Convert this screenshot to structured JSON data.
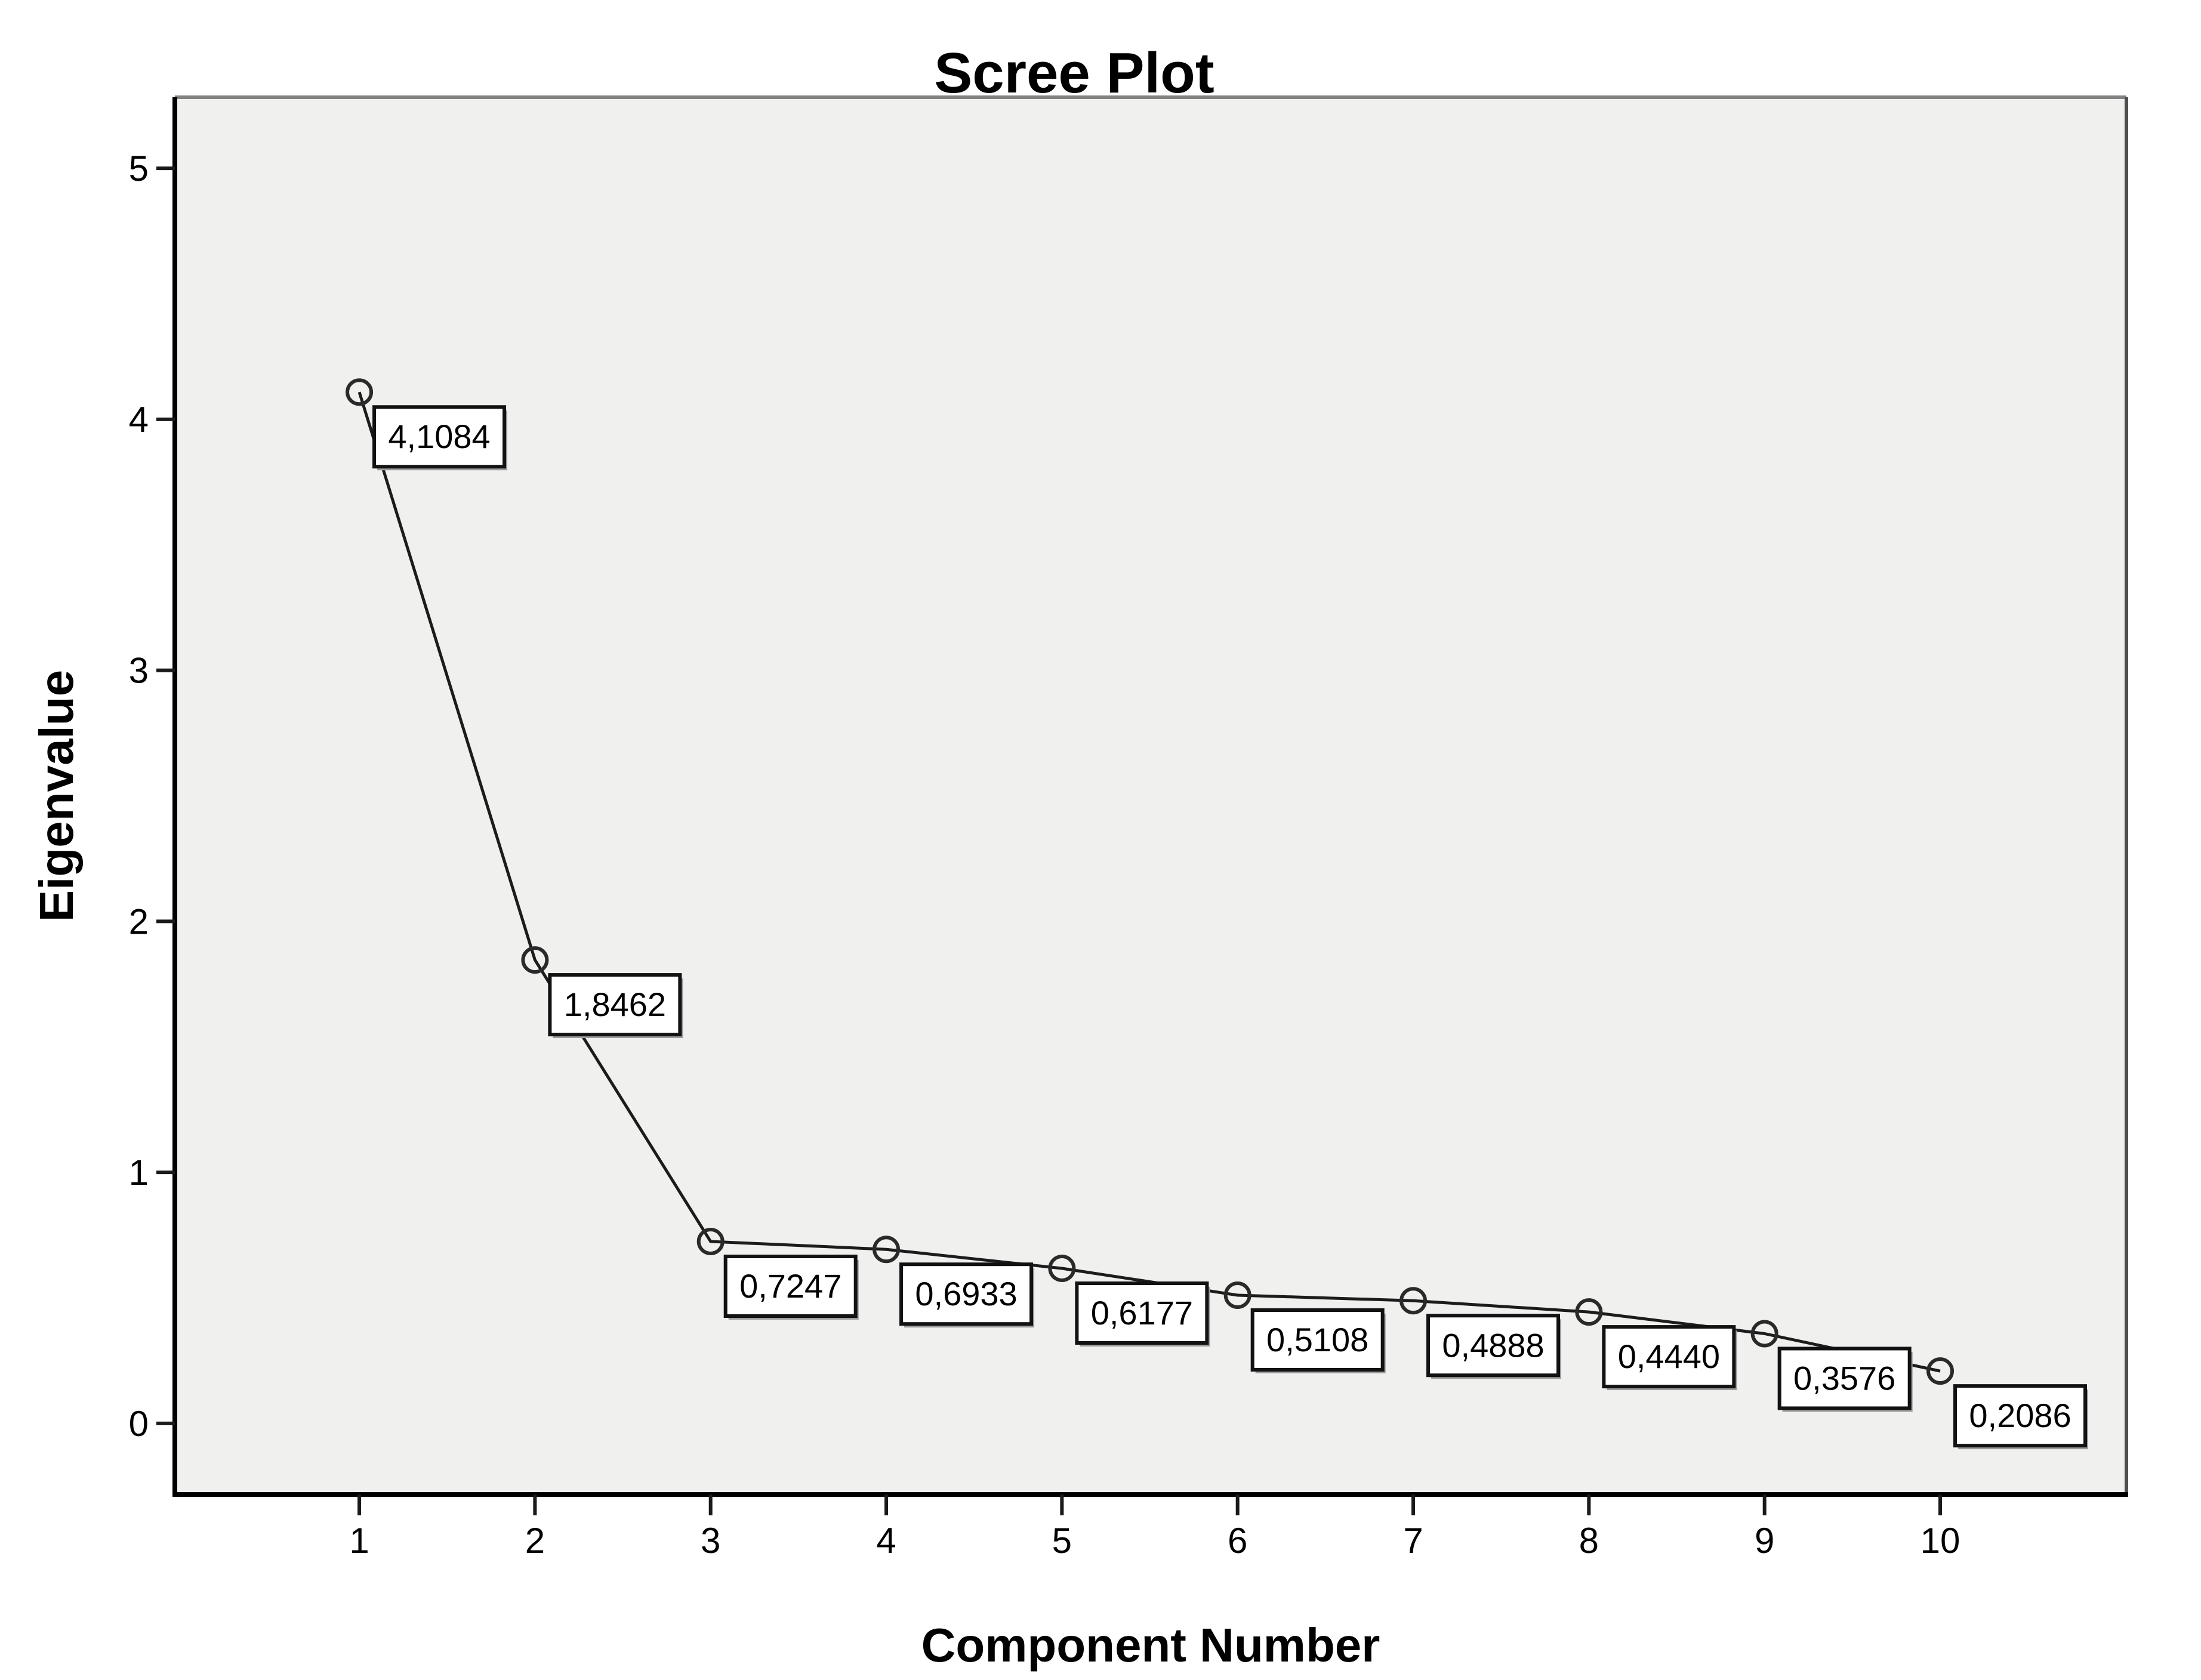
{
  "chart_data": {
    "type": "line",
    "title": "Scree Plot",
    "xlabel": "Component Number",
    "ylabel": "Eigenvalue",
    "x": [
      1,
      2,
      3,
      4,
      5,
      6,
      7,
      8,
      9,
      10
    ],
    "series": [
      {
        "name": "Eigenvalue",
        "values": [
          4.1084,
          1.8462,
          0.7247,
          0.6933,
          0.6177,
          0.5108,
          0.4888,
          0.444,
          0.3576,
          0.2086
        ]
      }
    ],
    "point_labels": [
      "4,1084",
      "1,8462",
      "0,7247",
      "0,6933",
      "0,6177",
      "0,5108",
      "0,4888",
      "0,4440",
      "0,3576",
      "0,2086"
    ],
    "decimal_separator": ",",
    "xticks": [
      "1",
      "2",
      "3",
      "4",
      "5",
      "6",
      "7",
      "8",
      "9",
      "10"
    ],
    "yticks": [
      0,
      1,
      2,
      3,
      4,
      5
    ],
    "ytick_labels": [
      "0",
      "1",
      "2",
      "3",
      "4",
      "5"
    ],
    "xlim": [
      -0.05,
      11.06
    ],
    "ylim": [
      -0.283,
      5.283
    ],
    "grid": false,
    "legend": false,
    "marker": "open-circle",
    "colors": {
      "page_background": "#ffffff",
      "plot_background": "#f0f0ee",
      "line": "#1c1c1c",
      "marker_stroke": "#2a2a2a",
      "label_box_fill": "#ffffff",
      "label_box_border": "#121212",
      "label_box_shadow": "#9c9c9c",
      "frame_top": "#828282",
      "frame_right": "#4f4f4f",
      "frame_left": "#000000",
      "frame_bottom": "#000000",
      "tick": "#1a1a1a",
      "text": "#000000"
    }
  }
}
